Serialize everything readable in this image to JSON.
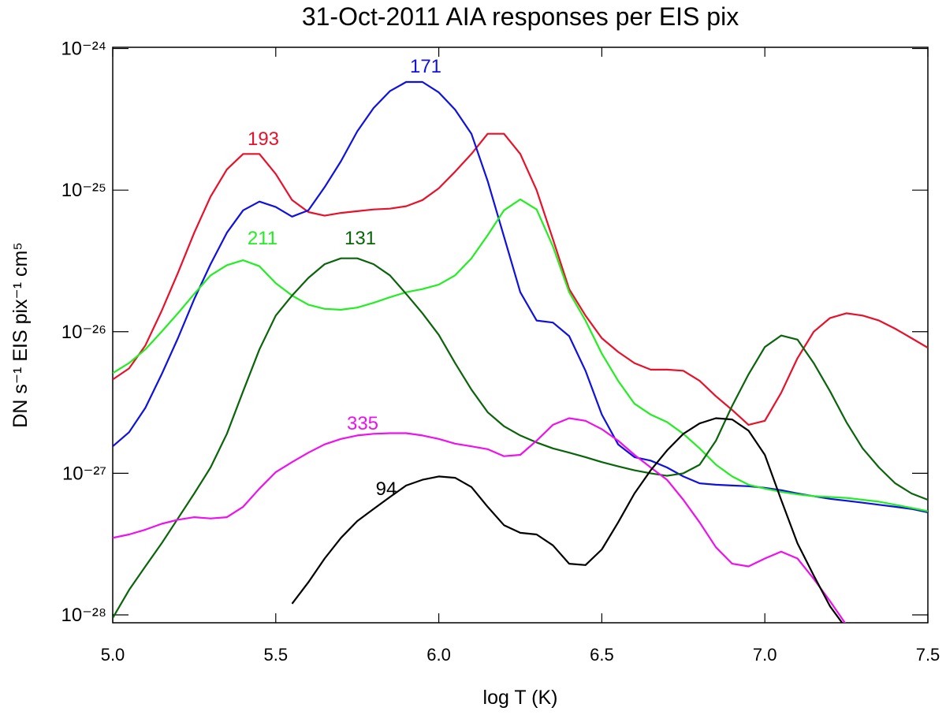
{
  "chart_data": {
    "type": "line",
    "title": "31-Oct-2011 AIA responses per EIS pix",
    "x_label": "log T (K)",
    "y_label": "DN s⁻¹ EIS pix⁻¹ cm⁵",
    "log_y": true,
    "xlim": [
      5.0,
      7.5
    ],
    "xticks": [
      {
        "value": 5,
        "label": "5.0"
      },
      {
        "value": 5.5,
        "label": "5.5"
      },
      {
        "value": 6,
        "label": "6.0"
      },
      {
        "value": 6.5,
        "label": "6.5"
      },
      {
        "value": 7,
        "label": "7.0"
      },
      {
        "value": 7.5,
        "label": "7.5"
      }
    ],
    "ylim": [
      8.8e-29,
      1.02e-24
    ],
    "yticks": [
      {
        "value": 1e-28,
        "label": "10⁻²⁸"
      },
      {
        "value": 1e-27,
        "label": "10⁻²⁷"
      },
      {
        "value": 1e-26,
        "label": "10⁻²⁶"
      },
      {
        "value": 1e-25,
        "label": "10⁻²⁵"
      },
      {
        "value": 1e-24,
        "label": "10⁻²⁴"
      }
    ],
    "x": [
      5.0,
      5.05,
      5.1,
      5.15,
      5.2,
      5.25,
      5.3,
      5.35,
      5.4,
      5.45,
      5.5,
      5.55,
      5.6,
      5.65,
      5.7,
      5.75,
      5.8,
      5.85,
      5.9,
      5.95,
      6.0,
      6.05,
      6.1,
      6.15,
      6.2,
      6.25,
      6.3,
      6.35,
      6.4,
      6.45,
      6.5,
      6.55,
      6.6,
      6.65,
      6.7,
      6.75,
      6.8,
      6.85,
      6.9,
      6.95,
      7.0,
      7.05,
      7.1,
      7.15,
      7.2,
      7.25,
      7.3,
      7.35,
      7.4,
      7.45,
      7.5
    ],
    "series": [
      {
        "name": "193",
        "color": "#e8102a",
        "values": [
          4.6e-27,
          5.5e-27,
          8e-27,
          1.4e-26,
          2.6e-26,
          5e-26,
          9e-26,
          1.4e-25,
          1.8e-25,
          1.8e-25,
          1.3e-25,
          8.5e-26,
          7e-26,
          6.6e-26,
          6.9e-26,
          7.1e-26,
          7.3e-26,
          7.4e-26,
          7.7e-26,
          8.5e-26,
          1.03e-25,
          1.35e-25,
          1.8e-25,
          2.5e-25,
          2.5e-25,
          1.8e-25,
          1e-25,
          4.5e-26,
          2e-26,
          1.3e-26,
          9e-27,
          7.2e-27,
          6e-27,
          5.4e-27,
          5.4e-27,
          5.3e-27,
          4.5e-27,
          3.5e-27,
          2.8e-27,
          2.2e-27,
          2.35e-27,
          3.7e-27,
          6.5e-27,
          1e-26,
          1.25e-26,
          1.35e-26,
          1.3e-26,
          1.2e-26,
          1.05e-26,
          9e-27,
          7.7e-27
        ]
      },
      {
        "name": "171",
        "color": "#1010e0",
        "values": [
          1.55e-27,
          1.95e-27,
          2.9e-27,
          5e-27,
          9e-27,
          1.7e-26,
          3e-26,
          5e-26,
          7.2e-26,
          8.3e-26,
          7.6e-26,
          6.5e-26,
          7.2e-26,
          1.05e-25,
          1.6e-25,
          2.6e-25,
          3.8e-25,
          5e-25,
          5.8e-25,
          5.8e-25,
          4.9e-25,
          3.7e-25,
          2.5e-25,
          1.16e-25,
          4.7e-26,
          1.9e-26,
          1.2e-26,
          1.16e-26,
          9.3e-27,
          5.3e-27,
          2.6e-27,
          1.6e-27,
          1.3e-27,
          1.23e-27,
          1.1e-27,
          9.5e-28,
          8.5e-28,
          8.3e-28,
          8.2e-28,
          8.1e-28,
          7.9e-28,
          7.6e-28,
          7.2e-28,
          6.9e-28,
          6.6e-28,
          6.4e-28,
          6.2e-28,
          6e-28,
          5.8e-28,
          5.6e-28,
          5.3e-28
        ]
      },
      {
        "name": "211",
        "color": "#22ee22",
        "values": [
          5.1e-27,
          6e-27,
          7.5e-27,
          1e-26,
          1.35e-26,
          1.85e-26,
          2.5e-26,
          2.95e-26,
          3.2e-26,
          2.9e-26,
          2.2e-26,
          1.8e-26,
          1.55e-26,
          1.45e-26,
          1.43e-26,
          1.48e-26,
          1.6e-26,
          1.75e-26,
          1.9e-26,
          2e-26,
          2.15e-26,
          2.5e-26,
          3.3e-26,
          4.8e-26,
          7.2e-26,
          8.6e-26,
          7.3e-26,
          4e-26,
          1.9e-26,
          1.2e-26,
          7e-27,
          4.5e-27,
          3.1e-27,
          2.6e-27,
          2.3e-27,
          1.9e-27,
          1.5e-27,
          1.15e-27,
          9.5e-28,
          8.3e-28,
          7.8e-28,
          7.4e-28,
          7.1e-28,
          6.9e-28,
          6.8e-28,
          6.7e-28,
          6.5e-28,
          6.3e-28,
          6e-28,
          5.7e-28,
          5.4e-28
        ]
      },
      {
        "name": "131",
        "color": "#0a640a",
        "values": [
          9.5e-29,
          1.5e-28,
          2.2e-28,
          3.2e-28,
          4.8e-28,
          7.2e-28,
          1.1e-27,
          1.9e-27,
          3.8e-27,
          7.5e-27,
          1.3e-26,
          1.8e-26,
          2.4e-26,
          3e-26,
          3.3e-26,
          3.3e-26,
          3e-26,
          2.5e-26,
          1.85e-26,
          1.35e-26,
          9.5e-27,
          6e-27,
          3.9e-27,
          2.7e-27,
          2.15e-27,
          1.85e-27,
          1.65e-27,
          1.5e-27,
          1.4e-27,
          1.3e-27,
          1.2e-27,
          1.12e-27,
          1.05e-27,
          1e-27,
          9.6e-28,
          1e-27,
          1.15e-27,
          1.7e-27,
          3e-27,
          5e-27,
          7.8e-27,
          9.4e-27,
          8.8e-27,
          6e-27,
          3.8e-27,
          2.3e-27,
          1.5e-27,
          1.1e-27,
          8.5e-28,
          7.2e-28,
          6.5e-28
        ]
      },
      {
        "name": "335",
        "color": "#ee10ee",
        "values": [
          3.5e-28,
          3.7e-28,
          4e-28,
          4.4e-28,
          4.7e-28,
          4.9e-28,
          4.8e-28,
          4.9e-28,
          5.8e-28,
          7.8e-28,
          1.02e-27,
          1.2e-27,
          1.4e-27,
          1.6e-27,
          1.75e-27,
          1.85e-27,
          1.9e-27,
          1.92e-27,
          1.92e-27,
          1.85e-27,
          1.75e-27,
          1.62e-27,
          1.55e-27,
          1.48e-27,
          1.32e-27,
          1.35e-27,
          1.7e-27,
          2.2e-27,
          2.45e-27,
          2.35e-27,
          2.05e-27,
          1.7e-27,
          1.35e-27,
          1.1e-27,
          9e-28,
          6.5e-28,
          4.5e-28,
          3e-28,
          2.3e-28,
          2.2e-28,
          2.5e-28,
          2.8e-28,
          2.5e-28,
          1.8e-28,
          1.25e-28,
          8.5e-29,
          null,
          null,
          null,
          null,
          null
        ]
      },
      {
        "name": "94",
        "color": "#000000",
        "values": [
          null,
          null,
          null,
          null,
          null,
          null,
          null,
          null,
          null,
          null,
          null,
          1.2e-28,
          1.7e-28,
          2.5e-28,
          3.5e-28,
          4.6e-28,
          5.6e-28,
          6.8e-28,
          8.2e-28,
          9e-28,
          9.5e-28,
          9.3e-28,
          8e-28,
          5.8e-28,
          4.3e-28,
          3.8e-28,
          3.7e-28,
          3.1e-28,
          2.3e-28,
          2.25e-28,
          2.9e-28,
          4.5e-28,
          7.2e-28,
          1.05e-27,
          1.45e-27,
          1.9e-27,
          2.25e-27,
          2.45e-27,
          2.4e-27,
          2e-27,
          1.35e-27,
          6.5e-28,
          3.2e-28,
          1.9e-28,
          1.15e-28,
          8e-29,
          null,
          null,
          null,
          null,
          null
        ]
      }
    ]
  }
}
